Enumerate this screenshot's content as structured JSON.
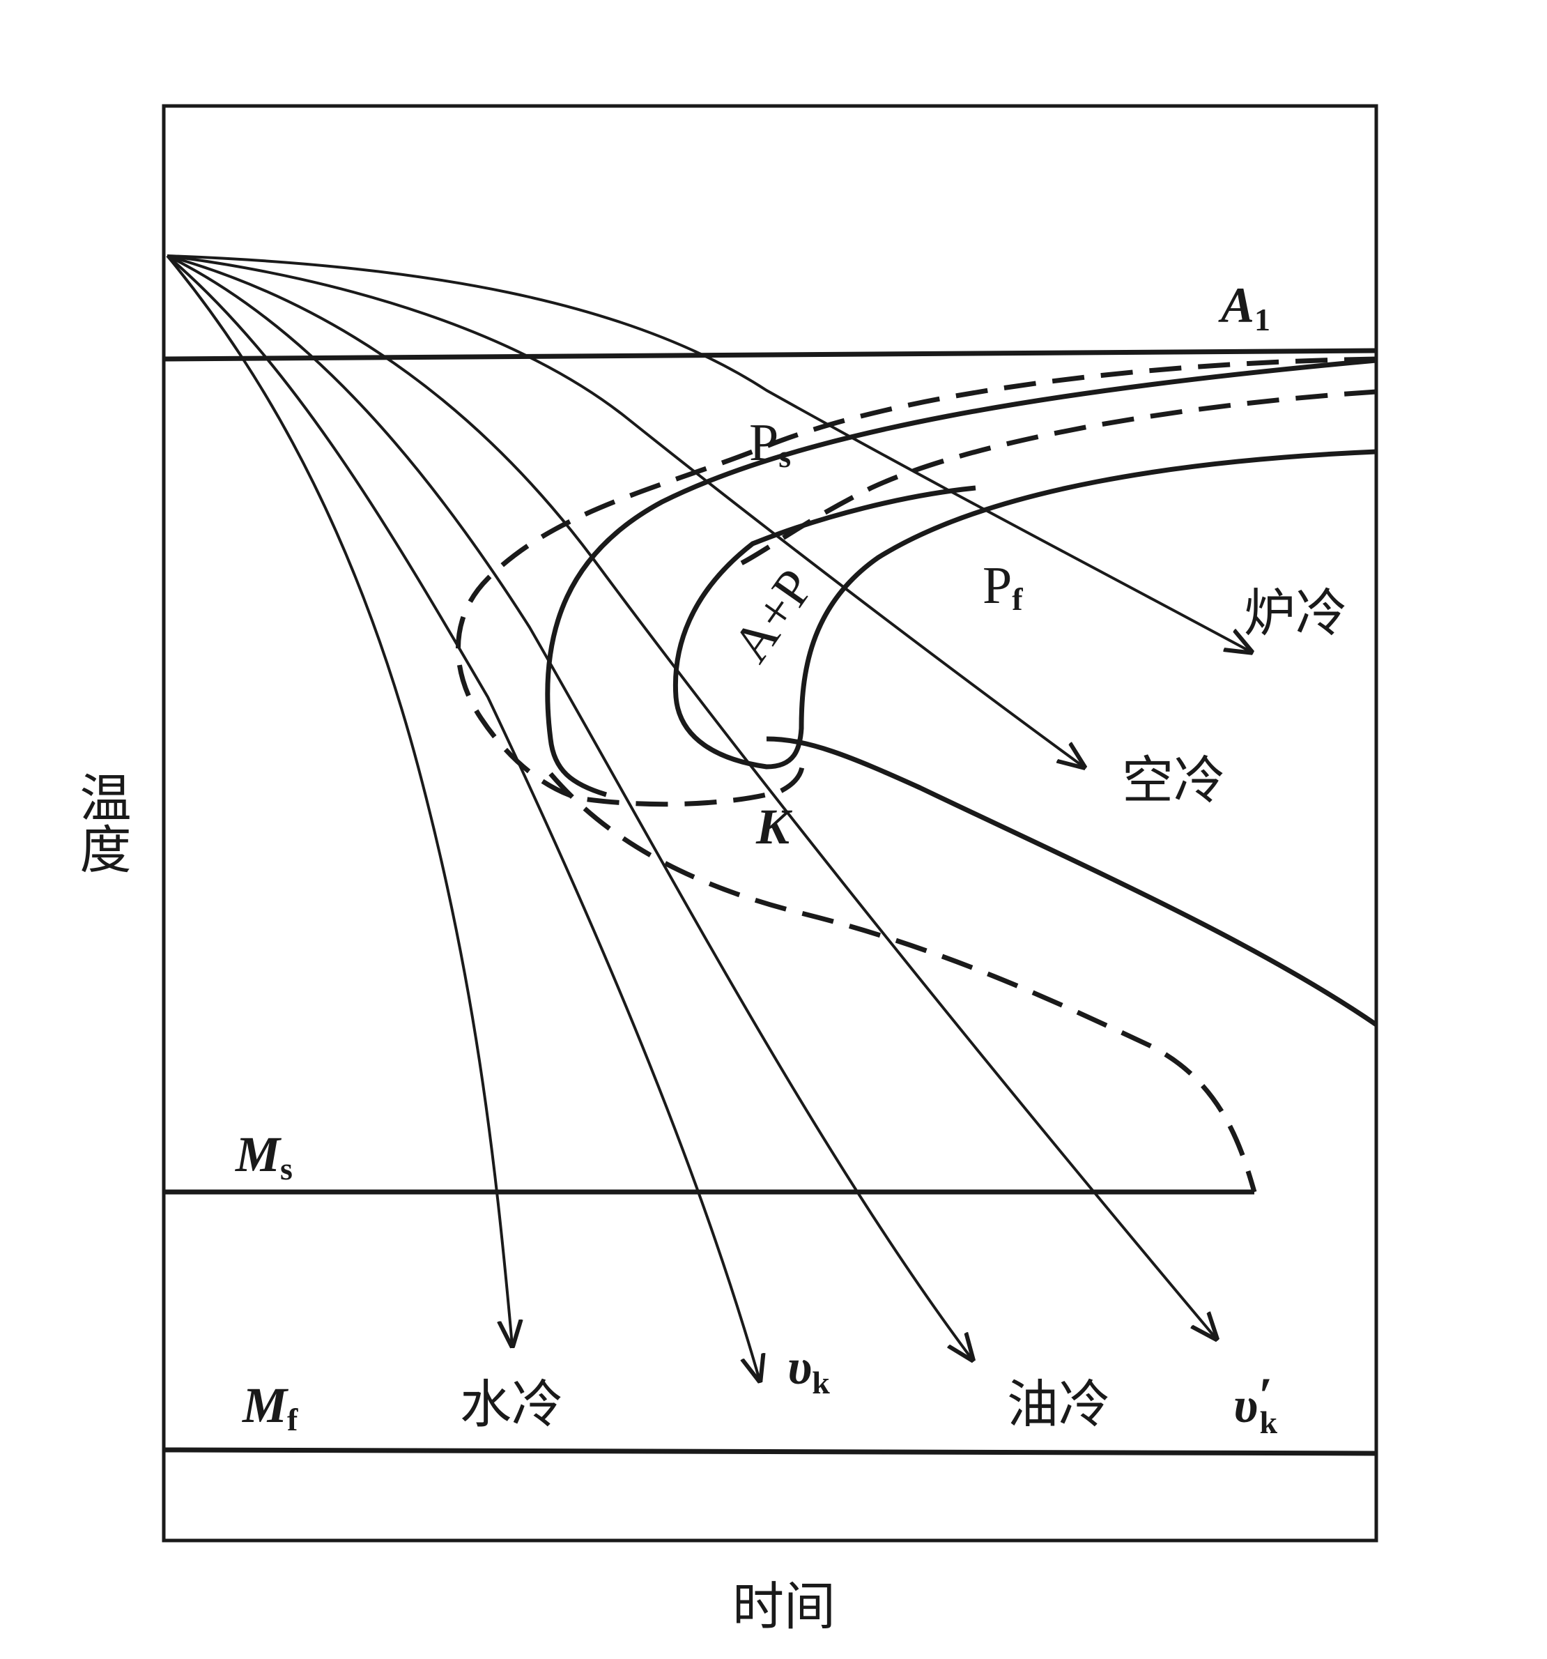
{
  "axes": {
    "y_label": "温度",
    "x_label": "时间"
  },
  "lines": {
    "A1": {
      "main": "A",
      "sub": "1"
    },
    "Ms": {
      "main": "M",
      "sub": "s"
    },
    "Mf": {
      "main": "M",
      "sub": "f"
    }
  },
  "regions": {
    "Ps": {
      "main": "P",
      "sub": "s"
    },
    "Pf": {
      "main": "P",
      "sub": "f"
    },
    "AP": "A+P",
    "K": "K"
  },
  "cooling_curves": [
    {
      "id": "furnace",
      "label": "炉冷"
    },
    {
      "id": "air",
      "label": "空冷"
    },
    {
      "id": "oil",
      "label": "油冷"
    },
    {
      "id": "water",
      "label": "水冷"
    },
    {
      "id": "vk",
      "label_main": "υ",
      "label_sub": "k"
    },
    {
      "id": "vk-prime",
      "label_main": "υ",
      "label_prime": "′",
      "label_sub": "k"
    }
  ],
  "colors": {
    "ink": "#1a1a1a",
    "background": "#ffffff"
  }
}
